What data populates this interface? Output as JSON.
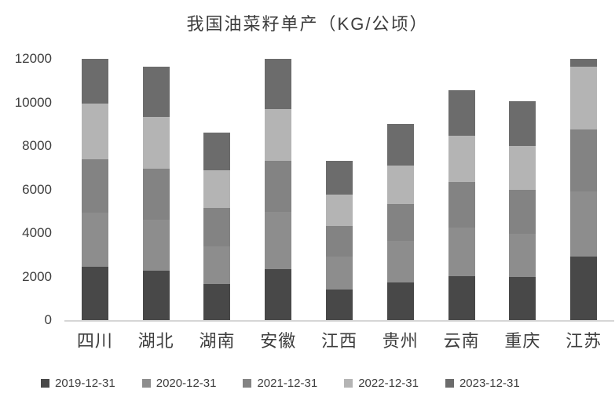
{
  "title": "我国油菜籽单产（KG/公顷）",
  "axis_color": "#d6d6d6",
  "text_color": "#3d3d3d",
  "chart_data": {
    "type": "bar",
    "stacked": true,
    "title": "我国油菜籽单产（KG/公顷）",
    "xlabel": "",
    "ylabel": "",
    "ylim": [
      0,
      12000
    ],
    "yticks": [
      0,
      2000,
      4000,
      6000,
      8000,
      10000,
      12000
    ],
    "grid": false,
    "legend_position": "bottom",
    "categories": [
      "四川",
      "湖北",
      "湖南",
      "安徽",
      "江西",
      "贵州",
      "云南",
      "重庆",
      "江苏"
    ],
    "series": [
      {
        "name": "2019-12-31",
        "color": "#484848",
        "values": [
          2450,
          2270,
          1670,
          2350,
          1400,
          1730,
          2030,
          1970,
          2950
        ]
      },
      {
        "name": "2020-12-31",
        "color": "#8d8d8d",
        "values": [
          2500,
          2340,
          1710,
          2620,
          1530,
          1900,
          2220,
          2010,
          3010
        ]
      },
      {
        "name": "2021-12-31",
        "color": "#838383",
        "values": [
          2450,
          2340,
          1770,
          2330,
          1410,
          1700,
          2100,
          2010,
          2860
        ]
      },
      {
        "name": "2022-12-31",
        "color": "#b4b4b4",
        "values": [
          2550,
          2370,
          1750,
          2400,
          1410,
          1770,
          2110,
          2010,
          2900
        ]
      },
      {
        "name": "2023-12-31",
        "color": "#6c6c6c",
        "values": [
          2050,
          2310,
          1700,
          2300,
          1550,
          1900,
          2090,
          2050,
          360
        ]
      }
    ],
    "totals": [
      12000,
      11630,
      8600,
      12000,
      7300,
      9000,
      10550,
      10050,
      12080
    ]
  }
}
